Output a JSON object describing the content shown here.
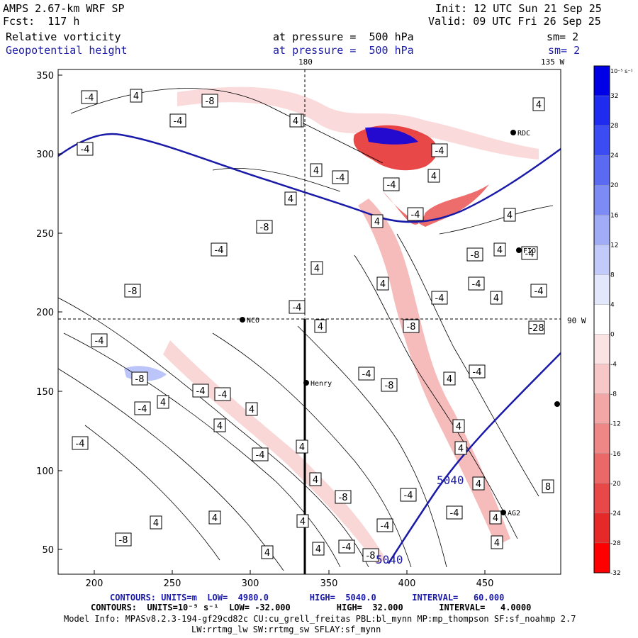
{
  "header": {
    "model": "AMPS 2.67-km WRF SP",
    "forecast": "Fcst:  117 h",
    "init": "Init: 12 UTC Sun 21 Sep 25",
    "valid": "Valid: 09 UTC Fri 26 Sep 25",
    "field1_name": "Relative vorticity",
    "field1_level": "at pressure =  500 hPa",
    "field1_sm": "sm= 2",
    "field2_name": "Geopotential height",
    "field2_level": "at pressure =  500 hPa",
    "field2_sm": "sm= 2"
  },
  "map_labels": {
    "lon_180": "180",
    "lon_135w": "135 W",
    "lon_90w": "90 W",
    "stations": [
      "NCO",
      "Henry",
      "RDC",
      "FIO",
      "AG2"
    ],
    "height_contour_labels": [
      "5040",
      "5040"
    ]
  },
  "axes": {
    "x_ticks": [
      "200",
      "250",
      "300",
      "350",
      "400",
      "450"
    ],
    "y_ticks": [
      "50",
      "100",
      "150",
      "200",
      "250",
      "300",
      "350"
    ]
  },
  "colorbar": {
    "unit": "10⁻⁵ s⁻¹",
    "ticks": [
      "32",
      "28",
      "24",
      "20",
      "16",
      "12",
      "8",
      "4",
      "0",
      "-4",
      "-8",
      "-12",
      "-16",
      "-20",
      "-24",
      "-28",
      "-32"
    ],
    "colors": [
      "#0000e6",
      "#1f2cf0",
      "#3a4cf2",
      "#5a6bf2",
      "#7c8cf4",
      "#a0acf6",
      "#c2caf9",
      "#e3e7fc",
      "#ffffff",
      "#fbe3e3",
      "#f7c6c6",
      "#f3a6a6",
      "#ef8787",
      "#eb6868",
      "#e84848",
      "#e52828",
      "#ff0000"
    ]
  },
  "vorticity_labels": [
    "-4",
    "4",
    "-8",
    "-4",
    "4",
    "-8",
    "-4",
    "4",
    "-8",
    "-4",
    "4",
    "-8",
    "-28",
    "-4",
    "-8",
    "-4",
    "-4",
    "4",
    "-4",
    "-8",
    "-4",
    "4",
    "4",
    "-4",
    "4",
    "4",
    "4",
    "-4",
    "4",
    "-4",
    "4",
    "-8",
    "-4",
    "4",
    "8",
    "4",
    "-4",
    "-4",
    "4",
    "4",
    "4",
    "-8",
    "4",
    "4",
    "-4",
    "-8",
    "4",
    "4",
    "-4",
    "-4",
    "4",
    "4",
    "-8",
    "4",
    "-4",
    "-4",
    "4",
    "4",
    "-4",
    "4",
    "-4",
    "4",
    "-4",
    "4",
    "4",
    "-4",
    "-4",
    "4"
  ],
  "footer": {
    "line1": "CONTOURS: UNITS=m  LOW=  4980.0        HIGH=  5040.0       INTERVAL=   60.000",
    "line2": "CONTOURS:  UNITS=10⁻⁵ s⁻¹  LOW= -32.000         HIGH=  32.000       INTERVAL=   4.0000",
    "line3": "Model Info: MPASv8.2.3-194-gf29cd82c CU:cu_grell_freitas PBL:bl_mynn MP:mp_thompson SF:sf_noahmp 2.7",
    "line4": "LW:rrtmg_lw SW:rrtmg_sw SFLAY:sf_mynn"
  }
}
